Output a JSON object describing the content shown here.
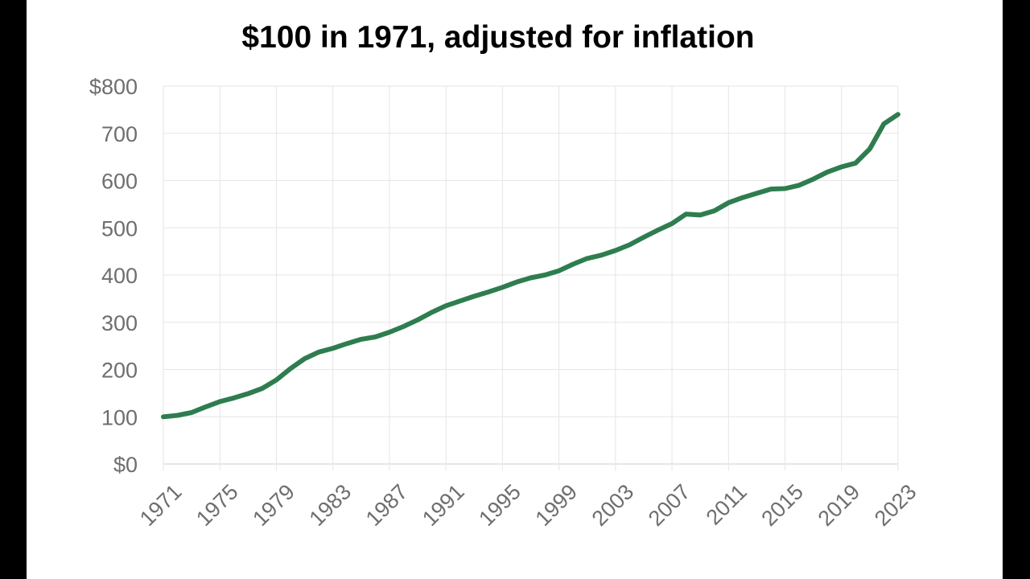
{
  "colors": {
    "background": "#ffffff",
    "frame": "#000000",
    "line": "#2e7d4f",
    "grid": "#e6e6e6",
    "axis": "#cccccc",
    "tick_text": "#6e6e6e",
    "title": "#000000"
  },
  "chart_data": {
    "type": "line",
    "title": "$100 in 1971, adjusted for inflation",
    "xlabel": "",
    "ylabel": "",
    "xlim": [
      1971,
      2023
    ],
    "ylim": [
      0,
      800
    ],
    "grid": true,
    "legend": "none",
    "x_tick_labels": [
      "1971",
      "1975",
      "1979",
      "1983",
      "1987",
      "1991",
      "1995",
      "1999",
      "2003",
      "2007",
      "2011",
      "2015",
      "2019",
      "2023"
    ],
    "y_tick_labels": [
      "$0",
      "100",
      "200",
      "300",
      "400",
      "500",
      "600",
      "700",
      "$800"
    ],
    "series": [
      {
        "x": [
          1971,
          1972,
          1973,
          1974,
          1975,
          1976,
          1977,
          1978,
          1979,
          1980,
          1981,
          1982,
          1983,
          1984,
          1985,
          1986,
          1987,
          1988,
          1989,
          1990,
          1991,
          1992,
          1993,
          1994,
          1995,
          1996,
          1997,
          1998,
          1999,
          2000,
          2001,
          2002,
          2003,
          2004,
          2005,
          2006,
          2007,
          2008,
          2009,
          2010,
          2011,
          2012,
          2013,
          2014,
          2015,
          2016,
          2017,
          2018,
          2019,
          2020,
          2021,
          2022,
          2023
        ],
        "values": [
          100,
          103,
          109,
          121,
          132,
          140,
          149,
          160,
          178,
          202,
          223,
          237,
          245,
          255,
          264,
          269,
          279,
          291,
          305,
          321,
          335,
          345,
          355,
          364,
          374,
          385,
          394,
          400,
          409,
          423,
          435,
          442,
          452,
          464,
          480,
          495,
          509,
          529,
          527,
          536,
          553,
          564,
          573,
          582,
          583,
          590,
          603,
          618,
          629,
          637,
          667,
          720,
          740
        ]
      }
    ]
  }
}
